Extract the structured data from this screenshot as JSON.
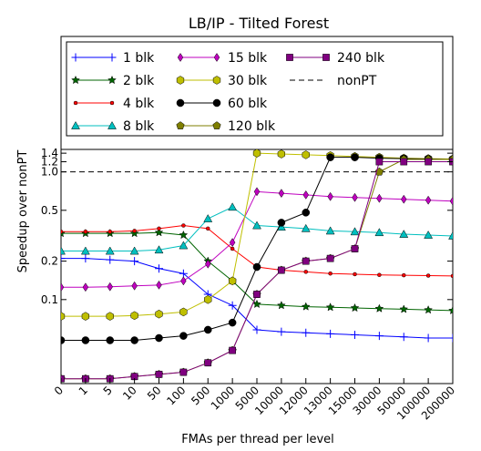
{
  "chart_data": {
    "type": "line",
    "title": "LB/IP - Tilted Forest",
    "xlabel": "FMAs per thread per level",
    "ylabel": "Speedup over nonPT",
    "y_scale": "log",
    "ylim": [
      0.022,
      1.45
    ],
    "grid": false,
    "legend_position": "top, 3 columns",
    "categories": [
      "0",
      "1",
      "5",
      "10",
      "50",
      "100",
      "500",
      "1000",
      "5000",
      "10000",
      "12000",
      "13000",
      "15000",
      "30000",
      "50000",
      "100000",
      "200000"
    ],
    "y_ticks": [
      "0.1",
      "0.2",
      "0.5",
      "1.0",
      "1.2",
      "1.4"
    ],
    "reference_line": {
      "name": "nonPT",
      "value": 1.0
    },
    "series": [
      {
        "name": "1 blk",
        "color": "#0000ff",
        "marker": "plus",
        "values": [
          0.21,
          0.21,
          0.205,
          0.2,
          0.175,
          0.16,
          0.11,
          0.09,
          0.058,
          0.056,
          0.055,
          0.054,
          0.053,
          0.052,
          0.051,
          0.05,
          0.05
        ]
      },
      {
        "name": "2 blk",
        "color": "#006400",
        "marker": "star",
        "values": [
          0.33,
          0.33,
          0.33,
          0.33,
          0.335,
          0.32,
          0.2,
          0.14,
          0.092,
          0.09,
          0.088,
          0.087,
          0.086,
          0.085,
          0.084,
          0.083,
          0.082
        ]
      },
      {
        "name": "4 blk",
        "color": "#ff0000",
        "marker": "dot",
        "values": [
          0.34,
          0.34,
          0.34,
          0.345,
          0.36,
          0.38,
          0.36,
          0.25,
          0.18,
          0.17,
          0.165,
          0.16,
          0.158,
          0.156,
          0.155,
          0.154,
          0.153
        ]
      },
      {
        "name": "8 blk",
        "color": "#00bfbf",
        "marker": "triangle",
        "values": [
          0.24,
          0.24,
          0.24,
          0.24,
          0.245,
          0.265,
          0.43,
          0.53,
          0.38,
          0.37,
          0.36,
          0.345,
          0.34,
          0.335,
          0.325,
          0.32,
          0.315
        ]
      },
      {
        "name": "15 blk",
        "color": "#bf00bf",
        "marker": "diamond",
        "values": [
          0.125,
          0.125,
          0.126,
          0.128,
          0.13,
          0.14,
          0.19,
          0.28,
          0.7,
          0.68,
          0.66,
          0.64,
          0.63,
          0.62,
          0.61,
          0.6,
          0.59
        ]
      },
      {
        "name": "30 blk",
        "color": "#bfbf00",
        "marker": "hexagon",
        "values": [
          0.074,
          0.074,
          0.074,
          0.075,
          0.077,
          0.08,
          0.1,
          0.14,
          1.4,
          1.38,
          1.36,
          1.34,
          1.32,
          1.3,
          1.28,
          1.27,
          1.26
        ]
      },
      {
        "name": "60 blk",
        "color": "#000000",
        "marker": "circle",
        "values": [
          0.048,
          0.048,
          0.048,
          0.048,
          0.05,
          0.052,
          0.058,
          0.066,
          0.18,
          0.4,
          0.48,
          1.3,
          1.3,
          1.28,
          1.27,
          1.26,
          1.25
        ]
      },
      {
        "name": "120 blk",
        "color": "#7f7f00",
        "marker": "pentagon",
        "values": [
          0.024,
          0.024,
          0.024,
          0.025,
          0.026,
          0.027,
          0.032,
          0.04,
          0.11,
          0.17,
          0.2,
          0.21,
          0.25,
          1.0,
          1.25,
          1.25,
          1.25
        ]
      },
      {
        "name": "240 blk",
        "color": "#800080",
        "marker": "square",
        "values": [
          0.024,
          0.024,
          0.024,
          0.025,
          0.026,
          0.027,
          0.032,
          0.04,
          0.11,
          0.17,
          0.2,
          0.21,
          0.25,
          1.2,
          1.2,
          1.2,
          1.2
        ]
      }
    ]
  }
}
